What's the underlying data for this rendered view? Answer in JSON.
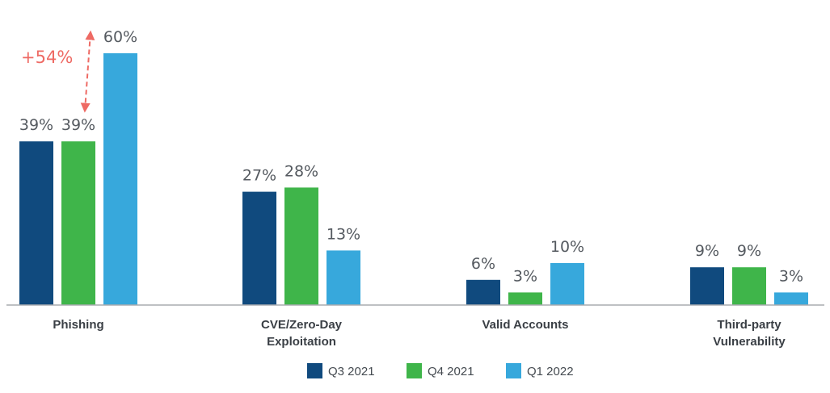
{
  "chart_data": {
    "type": "bar",
    "categories": [
      "Phishing",
      "CVE/Zero-Day Exploitation",
      "Valid Accounts",
      "Third-party Vulnerability"
    ],
    "category_lines": [
      [
        "Phishing"
      ],
      [
        "CVE/Zero-Day",
        "Exploitation"
      ],
      [
        "Valid Accounts"
      ],
      [
        "Third-party",
        "Vulnerability"
      ]
    ],
    "series": [
      {
        "name": "Q3 2021",
        "color": "#104a7e",
        "values": [
          39,
          27,
          6,
          9
        ]
      },
      {
        "name": "Q4 2021",
        "color": "#3fb54a",
        "values": [
          39,
          28,
          3,
          9
        ]
      },
      {
        "name": "Q1 2022",
        "color": "#37a8dc",
        "values": [
          60,
          13,
          10,
          3
        ]
      }
    ],
    "value_suffix": "%",
    "ylim": [
      0,
      60
    ],
    "legend_position": "bottom-center",
    "grid": false,
    "annotation": {
      "text": "+54%",
      "color": "#ee6a64",
      "category_index": 0,
      "from_series": 1,
      "to_series": 2
    }
  }
}
